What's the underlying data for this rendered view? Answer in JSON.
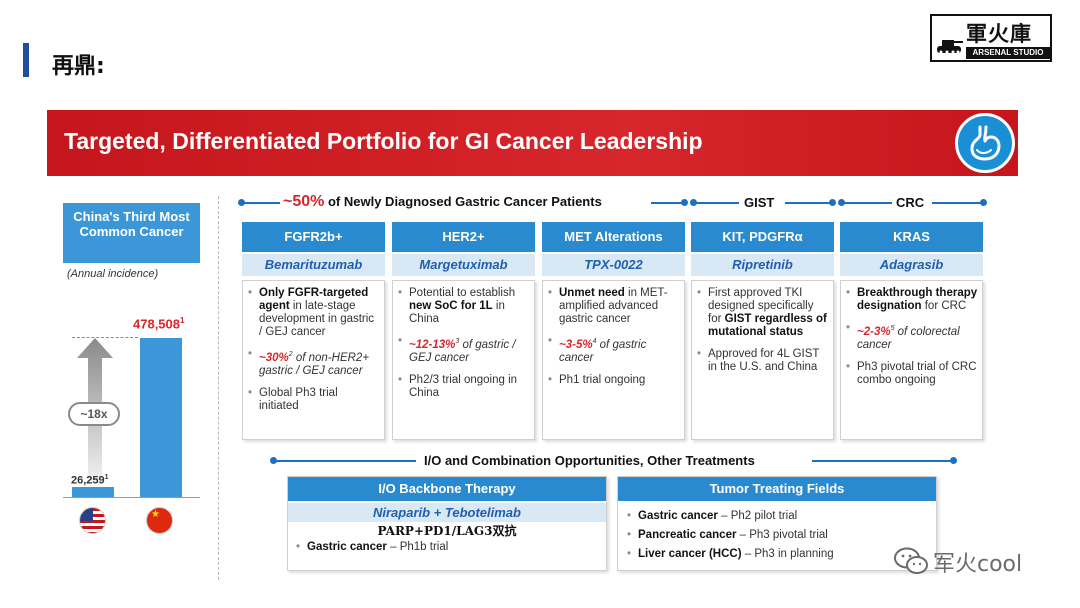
{
  "header": {
    "title": "再鼎:",
    "logo_text": "軍火庫",
    "logo_sub": "ARSENAL STUDIO"
  },
  "banner": {
    "title": "Targeted, Differentiated Portfolio for GI Cancer Leadership",
    "icon": "stomach-icon"
  },
  "left_panel": {
    "box_title": "China's Third Most Common Cancer",
    "note": "(Annual incidence)",
    "us_value": "26,259",
    "us_sup": "1",
    "china_value": "478,508",
    "china_sup": "1",
    "ratio": "~18x",
    "us_flag": "us-flag-icon",
    "china_flag": "china-flag-icon"
  },
  "sections": {
    "gastric_prefix": "~50%",
    "gastric_rest": " of Newly Diagnosed Gastric Cancer Patients",
    "gist": "GIST",
    "crc": "CRC",
    "io": "I/O and Combination Opportunities, Other Treatments"
  },
  "columns": [
    {
      "head": "FGFR2b+",
      "drug": "Bemarituzumab",
      "b1_bold": "Only FGFR-targeted agent",
      "b1_rest": " in late-stage development in gastric / GEJ cancer",
      "b2_red": "~30%",
      "b2_sup": "2",
      "b2_rest": " of non-HER2+ gastric / GEJ cancer",
      "b3": "Global Ph3 trial initiated"
    },
    {
      "head": "HER2+",
      "drug": "Margetuximab",
      "b1_pre": "Potential to establish ",
      "b1_bold": "new SoC for 1L",
      "b1_rest": " in China",
      "b2_red": "~12-13%",
      "b2_sup": "3",
      "b2_rest": " of gastric / GEJ cancer",
      "b3": "Ph2/3 trial ongoing in China"
    },
    {
      "head": "MET Alterations",
      "drug": "TPX-0022",
      "b1_bold": "Unmet need",
      "b1_rest": " in MET-amplified advanced gastric cancer",
      "b2_red": "~3-5%",
      "b2_sup": "4",
      "b2_rest": " of gastric cancer",
      "b3": "Ph1 trial ongoing"
    },
    {
      "head": "KIT, PDGFRα",
      "drug": "Ripretinib",
      "b1_pre": "First approved TKI designed specifically for ",
      "b1_bold": "GIST regardless of mutational status",
      "b2": "Approved for 4L GIST in the U.S. and China"
    },
    {
      "head": "KRAS",
      "drug": "Adagrasib",
      "b1_bold": "Breakthrough therapy designation",
      "b1_rest": " for CRC",
      "b2_red": "~2-3%",
      "b2_sup": "5",
      "b2_rest": " of colorectal cancer",
      "b3": "Ph3 pivotal trial of CRC combo ongoing"
    }
  ],
  "io_box": {
    "head": "I/O Backbone Therapy",
    "drug": "Niraparib + Tebotelimab",
    "note": "PARP+PD1/LAG3双抗",
    "line_bold": "Gastric cancer",
    "line_rest": " – Ph1b trial"
  },
  "ttf_box": {
    "head": "Tumor Treating Fields",
    "lines": [
      {
        "bold": "Gastric cancer",
        "rest": " – Ph2 pilot trial"
      },
      {
        "bold": "Pancreatic cancer",
        "rest": " – Ph3 pivotal trial"
      },
      {
        "bold": "Liver cancer (HCC)",
        "rest": " – Ph3 in planning"
      }
    ]
  },
  "watermark": {
    "text": "军火cool",
    "icon": "wechat-icon"
  },
  "colors": {
    "banner_red": "#d7262c",
    "header_blue": "#2a8ad0",
    "drug_bg": "#d9e8f5",
    "accent_red": "#d7262c"
  }
}
